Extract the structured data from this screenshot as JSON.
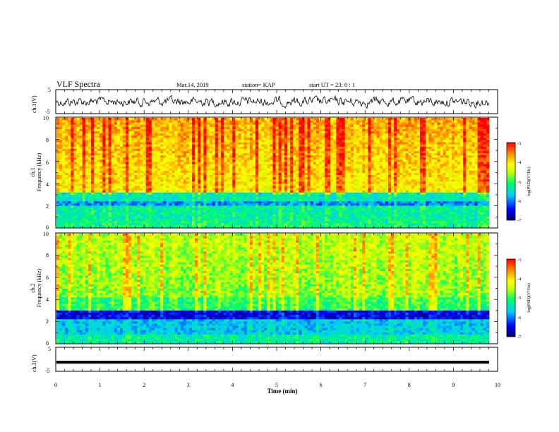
{
  "header": {
    "title": "VLF Spectra",
    "date": "Mar.14, 2019",
    "station": "station= KAP",
    "start": "start  UT  =   23: 0  : 1"
  },
  "chart_data": [
    {
      "type": "line",
      "name": "ch1-waveform",
      "ylabel": "ch.1(V)",
      "ylim": [
        -5,
        5
      ],
      "yticks": [
        "5",
        "-5"
      ],
      "xlim": [
        0,
        10
      ]
    },
    {
      "type": "heatmap",
      "name": "ch1-spectrogram",
      "ylabel_line1": "ch.1",
      "ylabel_line2": "Frequency (kHz)",
      "ylim": [
        0,
        10
      ],
      "yticks": [
        "0",
        "2",
        "4",
        "6",
        "8",
        "10"
      ],
      "xlim": [
        0,
        10
      ],
      "colorbar": {
        "label": "log(PSD)(V²/Hz)",
        "range": [
          -7,
          -3
        ],
        "ticks": [
          "-3",
          "-4",
          "-5",
          "-6",
          "-7"
        ]
      }
    },
    {
      "type": "heatmap",
      "name": "ch2-spectrogram",
      "ylabel_line1": "ch.2",
      "ylabel_line2": "Frequency (kHz)",
      "ylim": [
        0,
        10
      ],
      "yticks": [
        "0",
        "2",
        "4",
        "6",
        "8",
        "10"
      ],
      "xlim": [
        0,
        10
      ],
      "colorbar": {
        "label": "log(PSD)(V²/Hz)",
        "range": [
          -7,
          -3
        ],
        "ticks": [
          "-3",
          "-4",
          "-5",
          "-6",
          "-7"
        ]
      }
    },
    {
      "type": "line",
      "name": "ch3-waveform",
      "ylabel": "ch.3(V)",
      "ylim": [
        -5,
        5
      ],
      "yticks": [
        "5",
        "-5"
      ],
      "xlim": [
        0,
        10
      ],
      "level": -1.2
    }
  ],
  "xaxis": {
    "label": "Time (min)",
    "ticks": [
      "0",
      "1",
      "2",
      "3",
      "4",
      "5",
      "6",
      "7",
      "8",
      "9",
      "10"
    ]
  },
  "colors": {
    "scale": [
      "#000066",
      "#0000ff",
      "#00ccff",
      "#00ff66",
      "#ccff00",
      "#ffff00",
      "#ff8800",
      "#ff0000"
    ]
  }
}
